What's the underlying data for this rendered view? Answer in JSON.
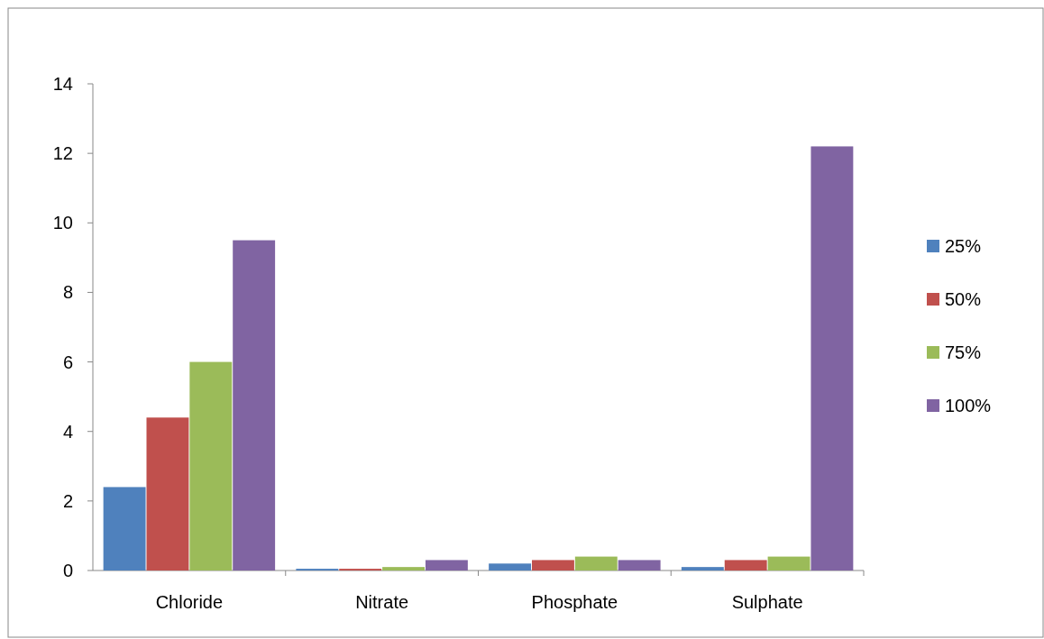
{
  "chart_data": {
    "type": "bar",
    "categories": [
      "Chloride",
      "Nitrate",
      "Phosphate",
      "Sulphate"
    ],
    "series": [
      {
        "name": "25%",
        "color": "#4f81bd",
        "values": [
          2.4,
          0.05,
          0.2,
          0.1
        ]
      },
      {
        "name": "50%",
        "color": "#c0504d",
        "values": [
          4.4,
          0.05,
          0.3,
          0.3
        ]
      },
      {
        "name": "75%",
        "color": "#9bbb59",
        "values": [
          6,
          0.1,
          0.4,
          0.4
        ]
      },
      {
        "name": "100%",
        "color": "#8064a2",
        "values": [
          9.5,
          0.3,
          0.3,
          12.2
        ]
      }
    ],
    "ylim": [
      0,
      14
    ],
    "yticks": [
      0,
      2,
      4,
      6,
      8,
      10,
      12,
      14
    ],
    "legend": "right"
  }
}
